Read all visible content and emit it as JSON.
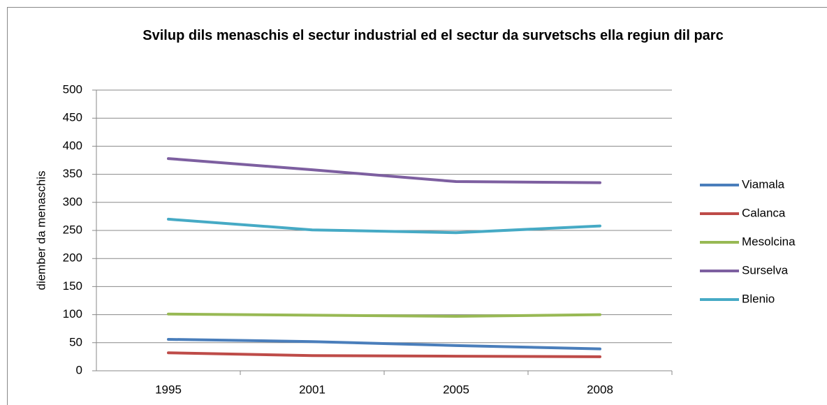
{
  "chart_data": {
    "type": "line",
    "title": "Svilup dils menaschis el sectur industrial ed el sectur da survetschs ella regiun dil parc",
    "y_label": "diember da menaschis",
    "categories": [
      "1995",
      "2001",
      "2005",
      "2008"
    ],
    "series": [
      {
        "name": "Viamala",
        "color": "#4a7ebb",
        "values": [
          56,
          52,
          45,
          39
        ]
      },
      {
        "name": "Calanca",
        "color": "#be4b48",
        "values": [
          32,
          27,
          26,
          25
        ]
      },
      {
        "name": "Mesolcina",
        "color": "#98b954",
        "values": [
          101,
          99,
          97,
          100
        ]
      },
      {
        "name": "Surselva",
        "color": "#7d5fa0",
        "values": [
          378,
          358,
          337,
          335
        ]
      },
      {
        "name": "Blenio",
        "color": "#46aac5",
        "values": [
          270,
          251,
          246,
          258
        ]
      }
    ],
    "ylim": [
      0,
      500
    ],
    "yticks": [
      0,
      50,
      100,
      150,
      200,
      250,
      300,
      350,
      400,
      450,
      500
    ],
    "grid": true,
    "legend": "right"
  }
}
